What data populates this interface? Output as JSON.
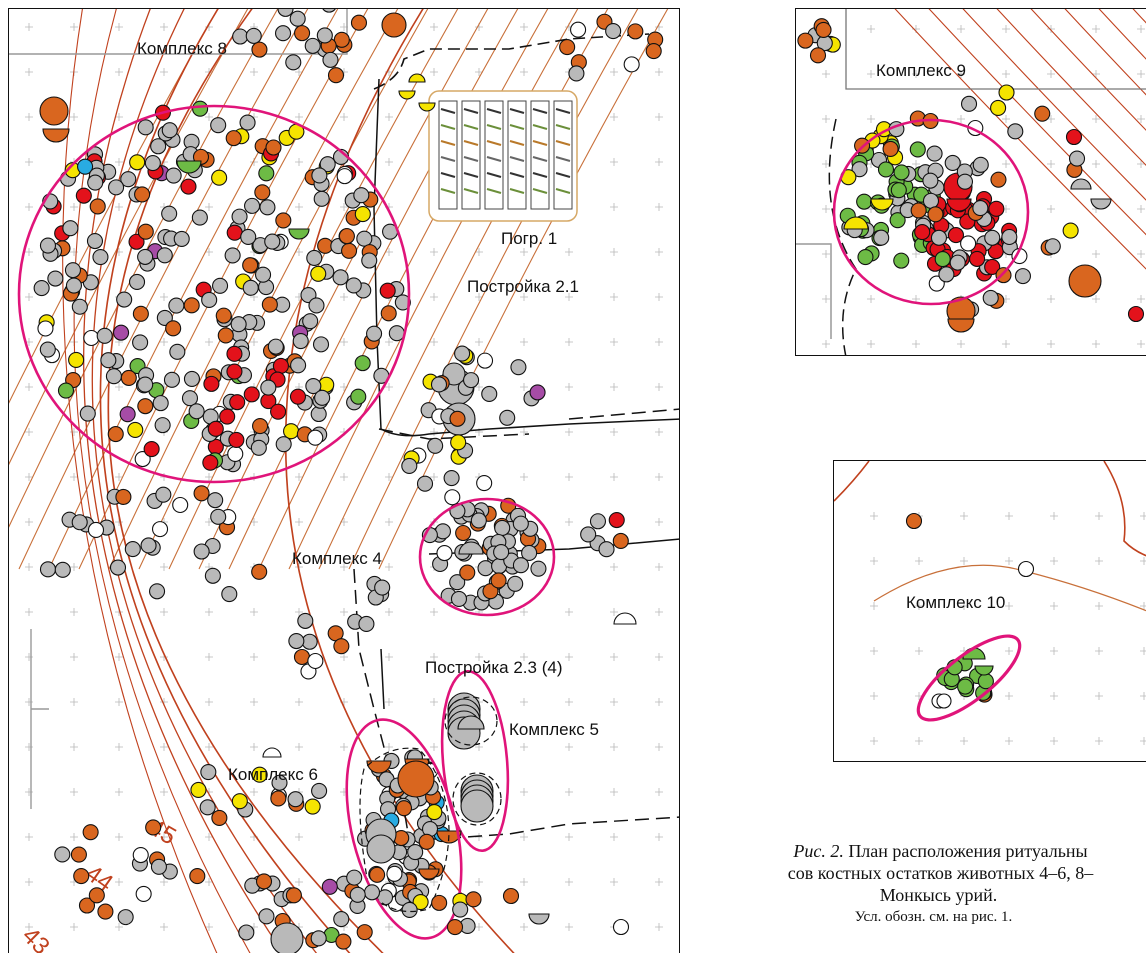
{
  "main_plan": {
    "labels": {
      "complex8": "Комплекс 8",
      "burial1": "Погр. 1",
      "building21": "Постройка 2.1",
      "complex4": "Комплекс 4",
      "building23": "Постройка 2.3 (4)",
      "complex5": "Комплекс 5",
      "complex6": "Комплекс 6"
    },
    "contours": [
      "45",
      "44",
      "43"
    ]
  },
  "inset_top": {
    "labels": {
      "complex9": "Комплекс 9"
    }
  },
  "inset_bottom": {
    "labels": {
      "complex10": "Комплекс 10"
    }
  },
  "caption": {
    "fig_ref": "Рис. 2.",
    "line1_rest": "План расположения ритуальны",
    "line2": "сов костных остатков животных 4–6, 8–",
    "line3": "Монкысь урий.",
    "line4": "Усл. обозн. см. на рис. 1."
  },
  "colors": {
    "grey": "#b9b9b9",
    "orange": "#d9661f",
    "yellow": "#f5e400",
    "green": "#6dbb45",
    "red": "#e3121b",
    "purple": "#a64ca6",
    "blue": "#29abe2",
    "circle": "#e0147a",
    "contour": "#c0411e"
  }
}
